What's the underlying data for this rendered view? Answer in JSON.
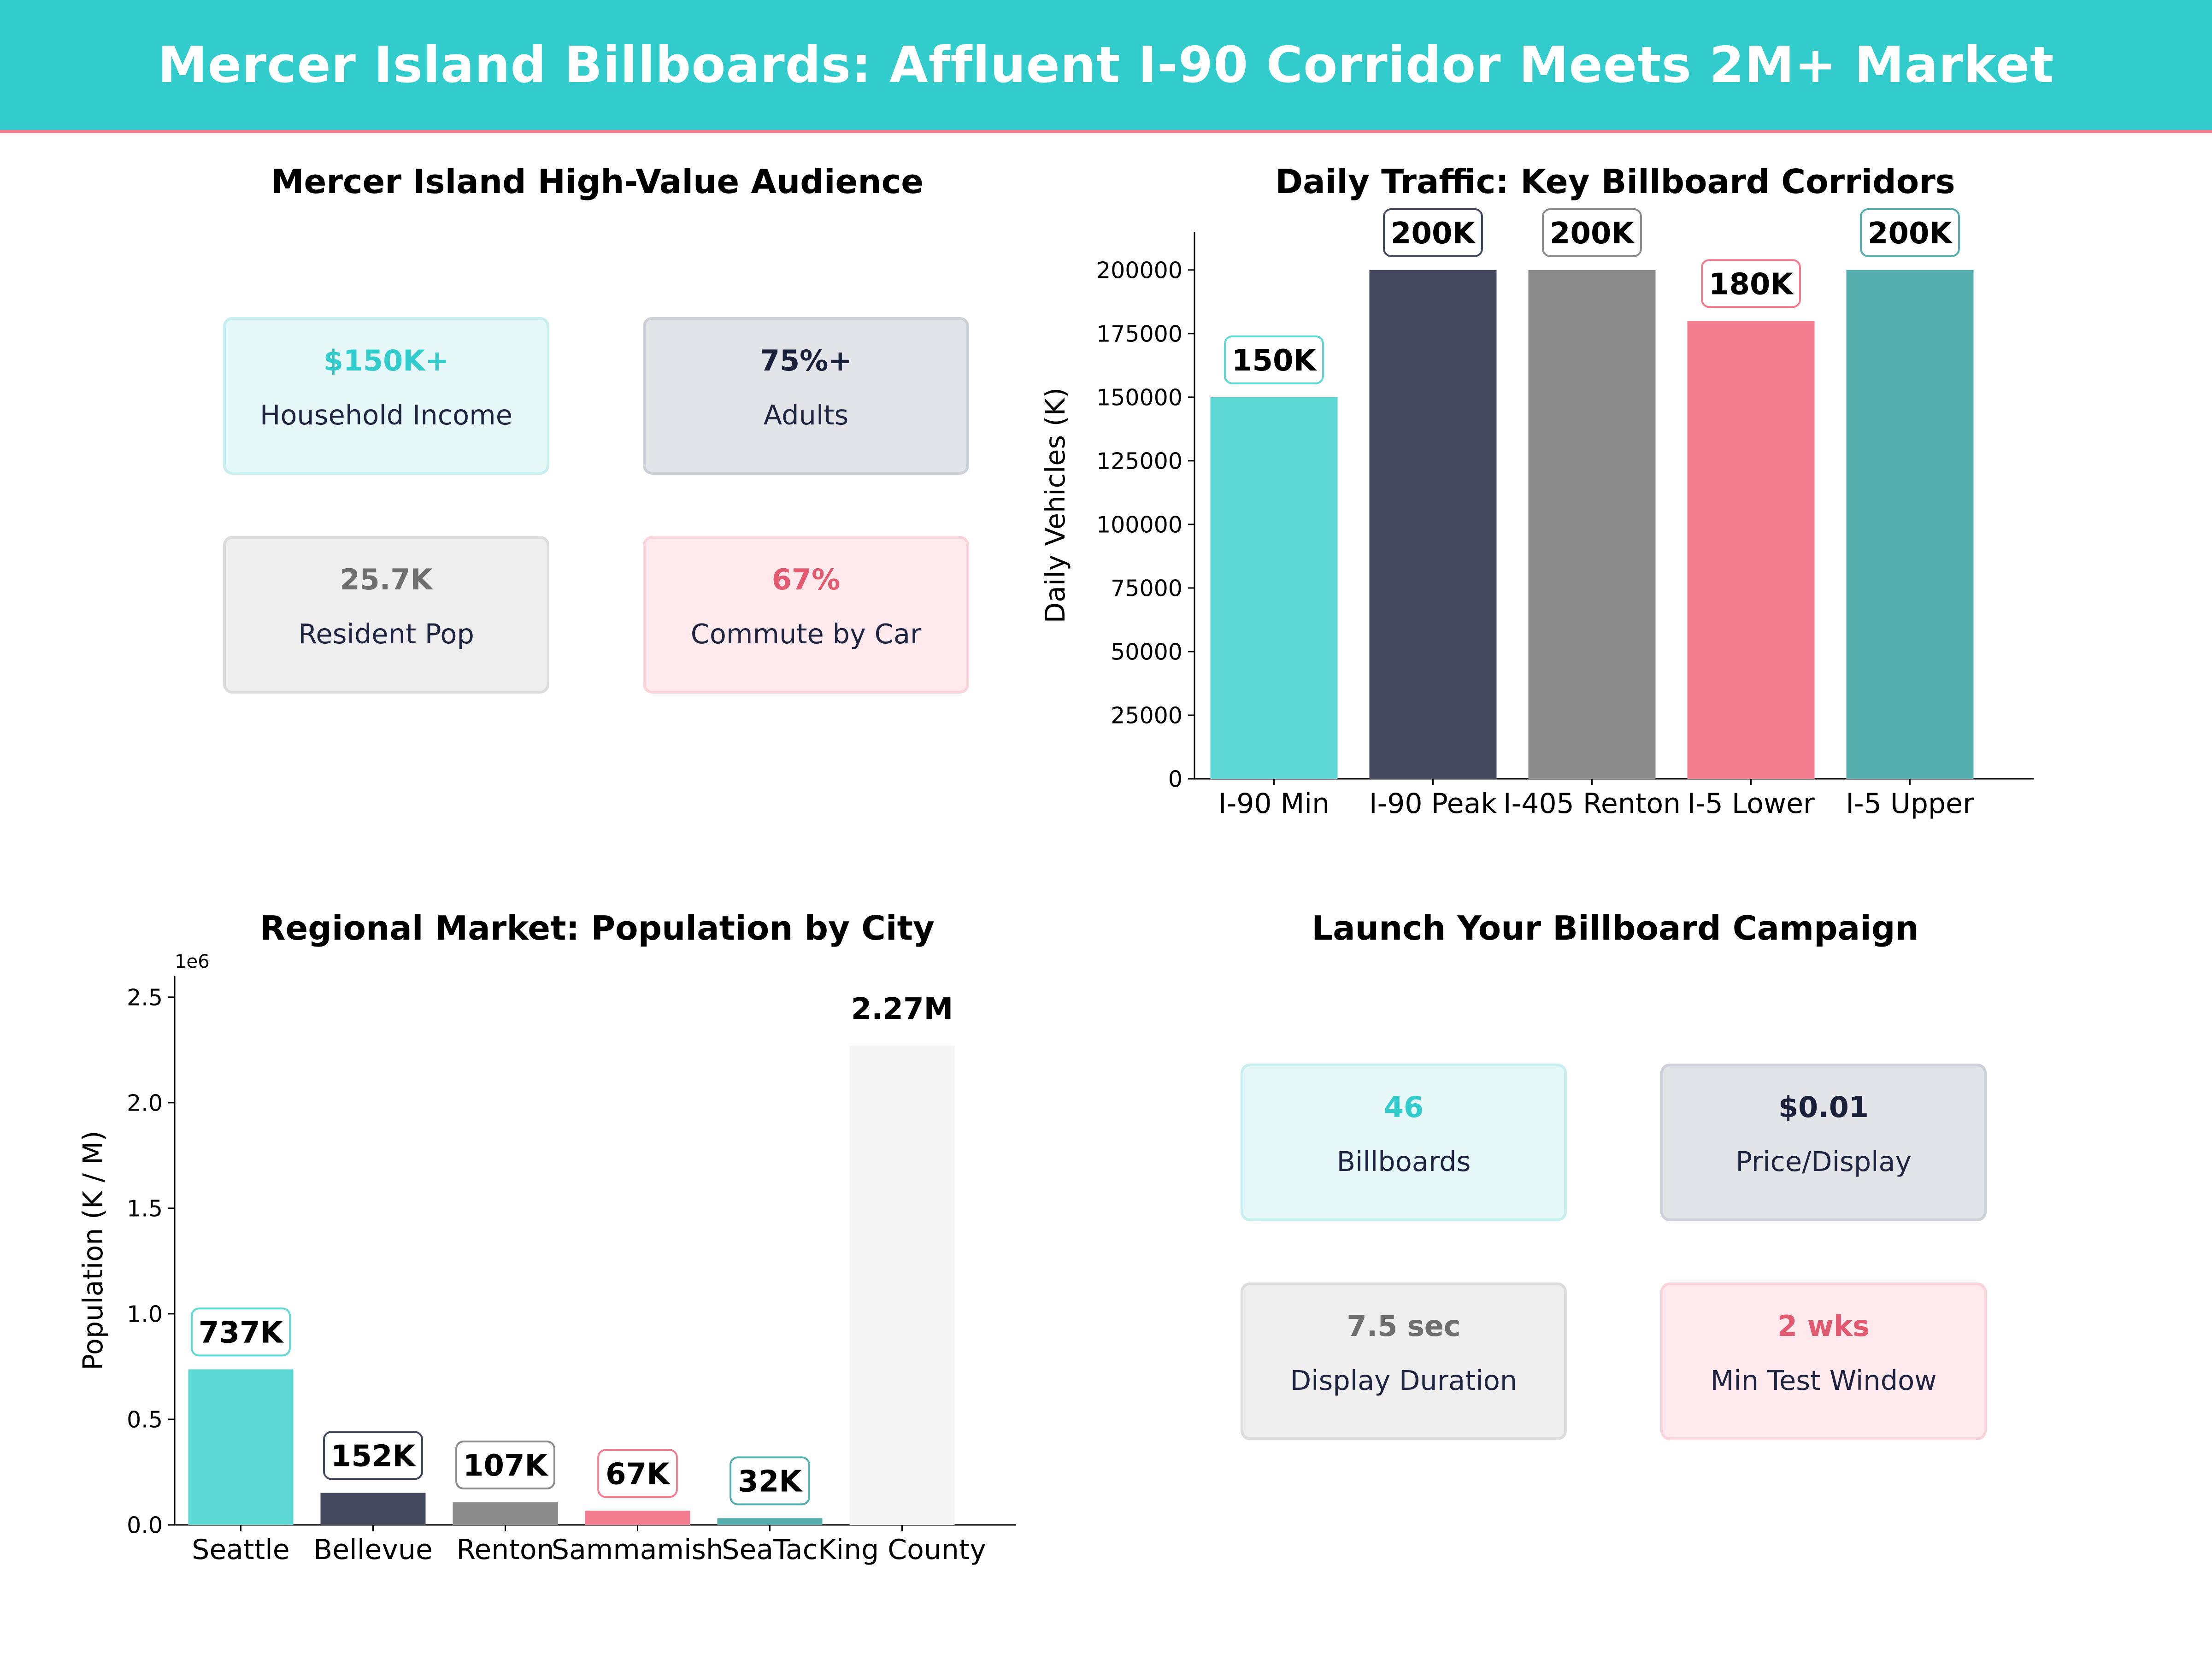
{
  "banner": {
    "title": "Mercer Island Billboards: Affluent I-90 Corridor Meets 2M+ Market"
  },
  "audience": {
    "title": "Mercer Island High-Value Audience",
    "cards": [
      {
        "value": "$150K+",
        "label": "Household Income"
      },
      {
        "value": "75%+",
        "label": "Adults"
      },
      {
        "value": "25.7K",
        "label": "Resident Pop"
      },
      {
        "value": "67%",
        "label": "Commute by Car"
      }
    ]
  },
  "campaign": {
    "title": "Launch Your Billboard Campaign",
    "cards": [
      {
        "value": "46",
        "label": "Billboards"
      },
      {
        "value": "$0.01",
        "label": "Price/Display"
      },
      {
        "value": "7.5 sec",
        "label": "Display Duration"
      },
      {
        "value": "2 wks",
        "label": "Min Test Window"
      }
    ]
  },
  "colors": {
    "teal": "#5dd8d5",
    "navy": "#44485d",
    "gray": "#8c8c8c",
    "pink": "#f47c8f",
    "dark_teal": "#55aeae",
    "pale": "#f5f5f5"
  },
  "chart_data": [
    {
      "type": "bar",
      "title": "Daily Traffic: Key Billboard Corridors",
      "categories": [
        "I-90 Min",
        "I-90 Peak",
        "I-405 Renton",
        "I-5 Lower",
        "I-5 Upper"
      ],
      "values": [
        150000,
        200000,
        200000,
        180000,
        200000
      ],
      "data_labels": [
        "150K",
        "200K",
        "200K",
        "180K",
        "200K"
      ],
      "colors": [
        "#5dd8d5",
        "#44485d",
        "#8c8c8c",
        "#f47c8f",
        "#55aeae"
      ],
      "ylabel": "Daily Vehicles (K)",
      "xlabel": "",
      "ylim": [
        0,
        215000
      ],
      "yticks": [
        0,
        25000,
        50000,
        75000,
        100000,
        125000,
        150000,
        175000,
        200000
      ],
      "ytick_labels": [
        "0",
        "25000",
        "50000",
        "75000",
        "100000",
        "125000",
        "150000",
        "175000",
        "200000"
      ]
    },
    {
      "type": "bar",
      "title": "Regional Market: Population by City",
      "categories": [
        "Seattle",
        "Bellevue",
        "Renton",
        "Sammamish",
        "SeaTac",
        "King County"
      ],
      "values": [
        737000,
        152000,
        107000,
        67000,
        32000,
        2270000
      ],
      "data_labels": [
        "737K",
        "152K",
        "107K",
        "67K",
        "32K",
        "2.27M"
      ],
      "colors": [
        "#5dd8d5",
        "#44485d",
        "#8c8c8c",
        "#f47c8f",
        "#55aeae",
        "#f5f5f5"
      ],
      "ylabel": "Population (K / M)",
      "xlabel": "",
      "offset_text": "1e6",
      "ylim": [
        0,
        2600000
      ],
      "yticks": [
        0,
        500000,
        1000000,
        1500000,
        2000000,
        2500000
      ],
      "ytick_labels": [
        "0.0",
        "0.5",
        "1.0",
        "1.5",
        "2.0",
        "2.5"
      ]
    }
  ]
}
